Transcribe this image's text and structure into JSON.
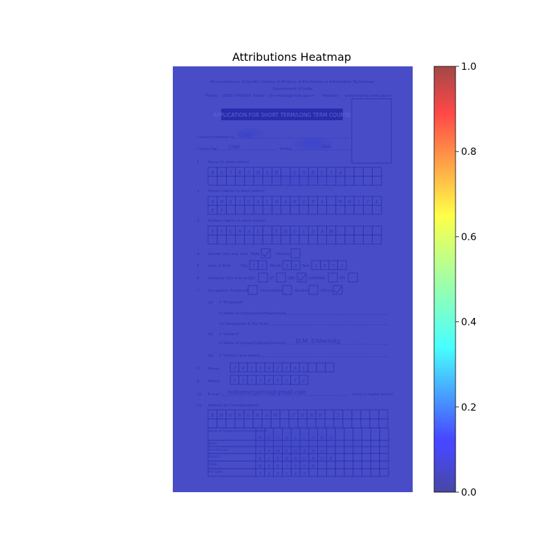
{
  "chart_data": {
    "type": "heatmap",
    "title": "Attributions Heatmap",
    "colormap": "jet",
    "colorbar": {
      "range": [
        0.0,
        1.0
      ],
      "ticks": [
        "0.0",
        "0.2",
        "0.4",
        "0.6",
        "0.8",
        "1.0"
      ]
    },
    "background_value": 0.0,
    "hotspots": [
      {
        "label": "course-field",
        "value": 0.15
      },
      {
        "label": "timing-field",
        "value": 0.18
      },
      {
        "label": "name-boxes",
        "value": 0.05
      },
      {
        "label": "address-table",
        "value": 0.06
      }
    ],
    "grid": false
  },
  "form": {
    "header_line1": "An autonomous Scientific Society of Ministry of Electronics & Information Technology",
    "header_line2": "Government of India",
    "contact_phone_label": "Phone :",
    "contact_phone": "0385-2454109",
    "contact_email_label": "Email :",
    "contact_email": "dir-imphal@nielit.gov.in",
    "contact_web_label": "Website :",
    "contact_web": "www.imphal.nielit.gov.in",
    "application_title": "APPLICATION FOR SHORT TERM/LONG TERM COURSE",
    "course_label": "Course Interested in",
    "course_value": "CAAP",
    "fee_label": "Course Fee",
    "fee_value": "1500",
    "timing_label": "Timing",
    "timing_value": "4pm",
    "q1": "1.",
    "q1_label": "Name (in block letters)",
    "name_letters": [
      "R",
      "A",
      "I",
      "K",
      "U",
      "M",
      "A",
      "R",
      "",
      "G",
      "A",
      "R",
      "C",
      "I",
      "A"
    ],
    "q2": "2.",
    "q2_label": "Father's Name (in block letters)",
    "father_letters_row1": [
      "R",
      "H",
      "E",
      "I",
      "G",
      "A",
      "C",
      "H",
      "A",
      "N",
      "D",
      "R",
      "A",
      "",
      "W",
      "H",
      "I",
      "T",
      "L"
    ],
    "father_letters_row2": [
      "E",
      "Y"
    ],
    "q3": "3.",
    "q3_label": "Mother's Name (in block letters)",
    "mother_letters": [
      "V",
      "I",
      "G",
      "N",
      "A",
      "L",
      "",
      "T",
      "H",
      "O",
      "U",
      "D",
      "A",
      "M"
    ],
    "q4": "4.",
    "q4_label": "Gender (tick only one)",
    "male_label": "Male",
    "female_label": "Female",
    "q5": "5.",
    "q5_label": "Date of Birth",
    "day_label": "Day",
    "day_value": [
      "1",
      "2"
    ],
    "month_label": "Month",
    "month_value": [
      "1",
      "0"
    ],
    "year_label": "Year",
    "year_value": [
      "1",
      "9",
      "7",
      "1"
    ],
    "q6": "6.",
    "q6_label": "Category (tick only one)",
    "sc_label": "SC",
    "st_label": "ST",
    "obc_label": "OBC",
    "general_label": "GENERAL",
    "ph_label": "PH",
    "q7": "7.",
    "q7_label": "Occupation",
    "employed_label": "Employed",
    "unemployed_label": "Unemployed",
    "student_label": "Student",
    "others_label": "Others",
    "a_label": "(a)",
    "a_text": "If \"Employed\"",
    "a_i": "(i)   Name of Organization/Department",
    "a_ii": "(ii)  Designation & Pay Scale",
    "b_label": "(b)",
    "b_text": "If \"Student\"",
    "b_i": "(i)   Name of School/College/University",
    "university_value": "D.M. University",
    "c_label": "(b)",
    "c_text": "If \"Others\" give details",
    "q8": "8.",
    "q8_label": "Phone",
    "phone_digits": [
      "7",
      "8",
      "1",
      "3",
      "4",
      "2",
      "3",
      "9",
      "1"
    ],
    "q9": "9.",
    "q9_label": "Mobile",
    "mobile_digits": [
      "2",
      "3",
      "1",
      "3",
      "4",
      "9",
      "2",
      "5",
      "2"
    ],
    "q10": "10.",
    "q10_label": "E-mail",
    "email_value": "raikumargarcia@gmail.com",
    "email_hint": "(write in capital letters)",
    "q11": "11.",
    "q11_label": "Address for Correspondence",
    "addr_row1": [
      "K",
      "H",
      "O",
      "N",
      "G",
      "H",
      "A",
      "M",
      "",
      "Z",
      "O",
      "N",
      "E",
      "",
      "2"
    ],
    "addr_rows": [
      {
        "label": "Name of Village/Gram Panchayat/Ward",
        "letters": [
          "R",
          "A",
          "G",
          "A",
          "I",
          "L",
          "O",
          "N",
          "G"
        ]
      },
      {
        "label": "Block",
        "letters": []
      },
      {
        "label": "Sub-Division",
        "letters": [
          "L",
          "A",
          "M",
          "S",
          "H",
          "A",
          "N",
          "G"
        ]
      },
      {
        "label": "District",
        "letters": [
          "B",
          "I",
          "S",
          "H",
          "N",
          "U",
          "P",
          "U",
          "R"
        ]
      },
      {
        "label": "State",
        "letters": [
          "M",
          "A",
          "N",
          "I",
          "P",
          "U",
          "R"
        ]
      },
      {
        "label": "Pin Code",
        "letters": [
          "7",
          "9",
          "5",
          "1",
          "4",
          "3"
        ]
      }
    ]
  }
}
